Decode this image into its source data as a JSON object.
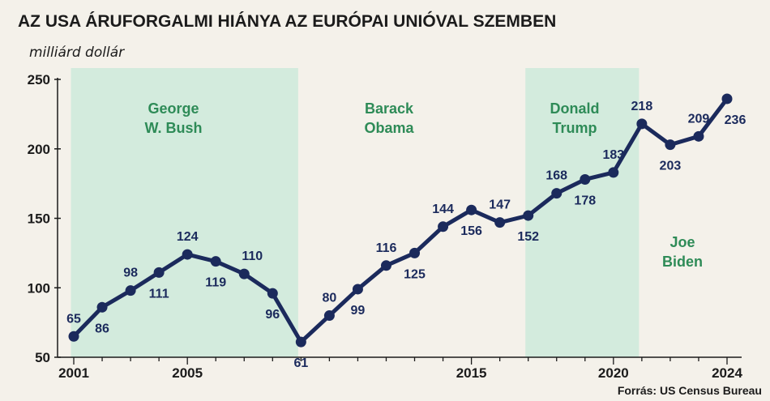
{
  "colors": {
    "line": "#1b2a5c",
    "era_band": "#cdeadb",
    "era_text": "#2e8b57",
    "background": "#f4f1ea"
  },
  "chart_data": {
    "type": "line",
    "title": "AZ USA ÁRUFORGALMI HIÁNYA AZ EURÓPAI UNIÓVAL SZEMBEN",
    "subtitle": "milliárd dollár",
    "source": "Forrás: US Census Bureau",
    "xlabel": "",
    "ylabel": "",
    "x": [
      2001,
      2002,
      2003,
      2004,
      2005,
      2006,
      2007,
      2008,
      2009,
      2010,
      2011,
      2012,
      2013,
      2014,
      2015,
      2016,
      2017,
      2018,
      2019,
      2020,
      2021,
      2022,
      2023,
      2024
    ],
    "series": [
      {
        "values": [
          65,
          86,
          98,
          111,
          124,
          119,
          110,
          96,
          61,
          80,
          99,
          116,
          125,
          144,
          156,
          147,
          152,
          168,
          178,
          183,
          218,
          203,
          209,
          236
        ]
      }
    ],
    "data_labels": [
      "65",
      "86",
      "98",
      "111",
      "124",
      "119",
      "110",
      "96",
      "61",
      "80",
      "99",
      "116",
      "125",
      "144",
      "156",
      "147",
      "152",
      "168",
      "178",
      "183",
      "218",
      "203",
      "209",
      "236"
    ],
    "xlim": [
      2001,
      2024
    ],
    "ylim": [
      50,
      250
    ],
    "yticks": [
      50,
      100,
      150,
      200,
      250
    ],
    "ytick_labels": [
      "50",
      "100",
      "150",
      "200",
      "250"
    ],
    "xticks": [
      2001,
      2005,
      2015,
      2020,
      2024
    ],
    "xtick_labels": [
      "2001",
      "2005",
      "2015",
      "2020",
      "2024"
    ],
    "grid": false,
    "legend": "none",
    "presidencies": [
      {
        "name_lines": [
          "George",
          "W. Bush"
        ],
        "start": 2001,
        "end": 2009,
        "shaded": true
      },
      {
        "name_lines": [
          "Barack",
          "Obama"
        ],
        "start": 2009,
        "end": 2017,
        "shaded": false
      },
      {
        "name_lines": [
          "Donald",
          "Trump"
        ],
        "start": 2017,
        "end": 2021,
        "shaded": true
      },
      {
        "name_lines": [
          "Joe",
          "Biden"
        ],
        "start": 2021,
        "end": 2025,
        "shaded": false
      }
    ]
  }
}
